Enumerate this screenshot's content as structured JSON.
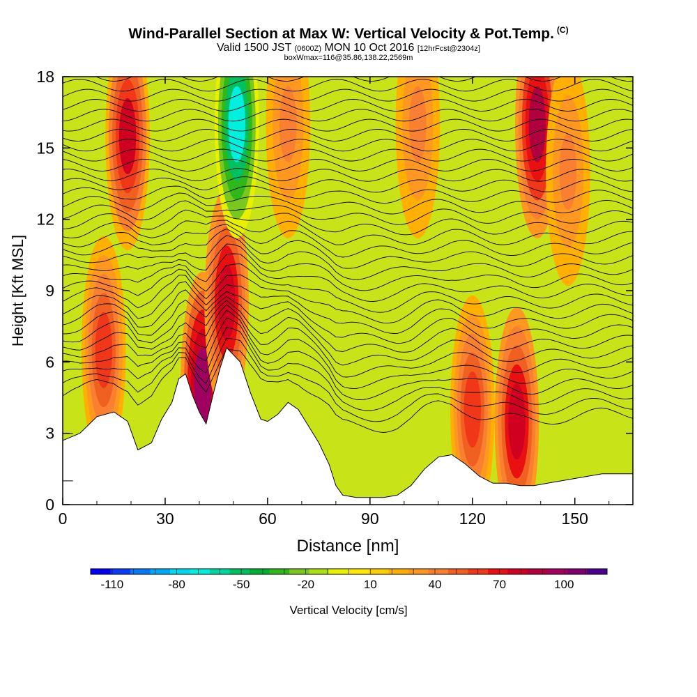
{
  "title": {
    "line1": "Wind-Parallel Section at Max W: Vertical Velocity & Pot.Temp.",
    "corner": "(C)",
    "line2_main1": "Valid 1500 JST",
    "line2_small1": "(0600Z)",
    "line2_main2": "MON 10 Oct 2016",
    "line2_small2": "[12hrFcst@2304z]",
    "line3": "boxWmax=116@35.86,138.22,2569m"
  },
  "chart_data": {
    "type": "heatmap",
    "xlabel": "Distance [nm]",
    "ylabel": "Height [Kft MSL]",
    "xlim": [
      0,
      167
    ],
    "ylim": [
      0,
      18
    ],
    "x_ticks": [
      0,
      30,
      60,
      90,
      120,
      150
    ],
    "y_ticks": [
      0,
      3,
      6,
      9,
      12,
      15,
      18
    ],
    "colorbar": {
      "label": "Vertical Velocity [cm/s]",
      "range": [
        -120,
        120
      ],
      "tick_labels": [
        -110,
        -80,
        -50,
        -20,
        10,
        40,
        70,
        100
      ],
      "colors": [
        "#0000f0",
        "#0a3cf5",
        "#0a78f5",
        "#00a8f8",
        "#00d8f0",
        "#00f0e0",
        "#00d8a0",
        "#00c060",
        "#00b030",
        "#30b818",
        "#78c820",
        "#a8e010",
        "#e8f000",
        "#ffe800",
        "#ffd000",
        "#ffb000",
        "#ff9820",
        "#f88030",
        "#f06020",
        "#f03818",
        "#e81010",
        "#d00020",
        "#b00040",
        "#a00060",
        "#800070",
        "#4a0090"
      ]
    },
    "terrain_kft": [
      [
        0,
        2.7
      ],
      [
        5,
        3.0
      ],
      [
        10,
        3.7
      ],
      [
        15,
        3.9
      ],
      [
        19,
        3.5
      ],
      [
        22,
        2.3
      ],
      [
        26,
        2.6
      ],
      [
        29,
        3.6
      ],
      [
        32,
        4.3
      ],
      [
        34,
        5.3
      ],
      [
        36,
        5.5
      ],
      [
        38,
        4.6
      ],
      [
        40,
        3.9
      ],
      [
        42,
        3.4
      ],
      [
        44,
        4.6
      ],
      [
        46,
        5.7
      ],
      [
        48,
        6.6
      ],
      [
        52,
        6.0
      ],
      [
        55,
        4.7
      ],
      [
        58,
        3.6
      ],
      [
        60,
        3.5
      ],
      [
        63,
        3.8
      ],
      [
        66,
        4.3
      ],
      [
        69,
        4.0
      ],
      [
        72,
        3.3
      ],
      [
        75,
        2.6
      ],
      [
        78,
        1.7
      ],
      [
        80,
        0.8
      ],
      [
        82,
        0.4
      ],
      [
        86,
        0.3
      ],
      [
        90,
        0.3
      ],
      [
        94,
        0.3
      ],
      [
        98,
        0.4
      ],
      [
        102,
        0.8
      ],
      [
        106,
        1.5
      ],
      [
        110,
        2.0
      ],
      [
        114,
        2.1
      ],
      [
        118,
        1.7
      ],
      [
        122,
        1.2
      ],
      [
        126,
        0.9
      ],
      [
        130,
        0.9
      ],
      [
        134,
        0.8
      ],
      [
        138,
        0.8
      ],
      [
        142,
        0.9
      ],
      [
        146,
        1.0
      ],
      [
        150,
        1.1
      ],
      [
        154,
        1.2
      ],
      [
        158,
        1.3
      ],
      [
        162,
        1.3
      ],
      [
        167,
        1.3
      ]
    ],
    "w_features": [
      {
        "x": 12,
        "y": 6.5,
        "value": 60
      },
      {
        "x": 19,
        "y": 15.5,
        "value": 75
      },
      {
        "x": 41,
        "y": 5.0,
        "value": 100
      },
      {
        "x": 48,
        "y": 8.5,
        "value": 80
      },
      {
        "x": 51,
        "y": 16.0,
        "value": -70
      },
      {
        "x": 66,
        "y": 16.0,
        "value": 40
      },
      {
        "x": 104,
        "y": 16.0,
        "value": 40
      },
      {
        "x": 120,
        "y": 4.0,
        "value": 60
      },
      {
        "x": 133,
        "y": 3.5,
        "value": 80
      },
      {
        "x": 139,
        "y": 16.0,
        "value": 85
      },
      {
        "x": 148,
        "y": 14.0,
        "value": 40
      }
    ]
  }
}
